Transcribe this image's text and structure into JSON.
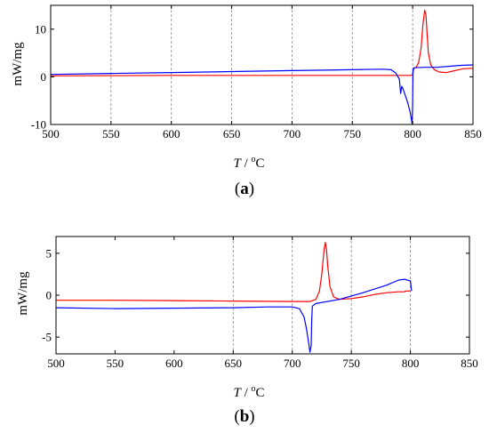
{
  "chart_data": [
    {
      "type": "line",
      "panel_label": "a",
      "xlabel_var": "T",
      "xlabel_unit_prefix": " / ",
      "xlabel_unit_sup": "o",
      "xlabel_unit_rest": "C",
      "ylabel": "mW/mg",
      "xlim": [
        500,
        850
      ],
      "ylim": [
        -10,
        15
      ],
      "xticks": [
        500,
        550,
        600,
        650,
        700,
        750,
        800,
        850
      ],
      "yticks": [
        -10,
        0,
        10
      ],
      "vgrid": [
        550,
        600,
        650,
        700,
        750,
        800
      ],
      "series": [
        {
          "color": "#ff0000",
          "points": [
            [
              500,
              0.2
            ],
            [
              600,
              0.3
            ],
            [
              700,
              0.3
            ],
            [
              750,
              0.3
            ],
            [
              790,
              0.3
            ],
            [
              799,
              0.3
            ],
            [
              800,
              0.5
            ],
            [
              801,
              1.8
            ],
            [
              803,
              2.0
            ],
            [
              805,
              3.0
            ],
            [
              807,
              6.0
            ],
            [
              808.5,
              11.0
            ],
            [
              810,
              14.0
            ],
            [
              811,
              13.0
            ],
            [
              812,
              9.0
            ],
            [
              813,
              5.0
            ],
            [
              815,
              2.5
            ],
            [
              818,
              1.5
            ],
            [
              822,
              1.0
            ],
            [
              828,
              0.9
            ],
            [
              835,
              1.3
            ],
            [
              842,
              1.7
            ],
            [
              850,
              1.8
            ]
          ]
        },
        {
          "color": "#0000ff",
          "points": [
            [
              500,
              0.5
            ],
            [
              550,
              0.7
            ],
            [
              600,
              0.9
            ],
            [
              650,
              1.1
            ],
            [
              700,
              1.3
            ],
            [
              750,
              1.5
            ],
            [
              775,
              1.6
            ],
            [
              782,
              1.5
            ],
            [
              786,
              0.8
            ],
            [
              789,
              -0.5
            ],
            [
              790,
              -3.5
            ],
            [
              791,
              -2.0
            ],
            [
              792,
              -2.5
            ],
            [
              794,
              -4.0
            ],
            [
              796,
              -5.5
            ],
            [
              798,
              -7.5
            ],
            [
              799.5,
              -9.8
            ],
            [
              800,
              -6.0
            ],
            [
              800.3,
              1.5
            ],
            [
              801,
              1.9
            ],
            [
              810,
              2.0
            ],
            [
              820,
              2.0
            ],
            [
              830,
              2.2
            ],
            [
              840,
              2.4
            ],
            [
              850,
              2.5
            ]
          ]
        }
      ]
    },
    {
      "type": "line",
      "panel_label": "b",
      "xlabel_var": "T",
      "xlabel_unit_prefix": " / ",
      "xlabel_unit_sup": "o",
      "xlabel_unit_rest": "C",
      "ylabel": "mW/mg",
      "xlim": [
        500,
        850
      ],
      "ylim": [
        -7,
        7
      ],
      "xticks": [
        500,
        550,
        600,
        650,
        700,
        750,
        800,
        850
      ],
      "yticks": [
        -5,
        0,
        5
      ],
      "vgrid": [
        650,
        700,
        750,
        800
      ],
      "series": [
        {
          "color": "#ff0000",
          "points": [
            [
              500,
              -0.6
            ],
            [
              550,
              -0.6
            ],
            [
              600,
              -0.65
            ],
            [
              650,
              -0.7
            ],
            [
              700,
              -0.75
            ],
            [
              715,
              -0.75
            ],
            [
              720,
              -0.5
            ],
            [
              723,
              0.5
            ],
            [
              725,
              2.5
            ],
            [
              727,
              5.5
            ],
            [
              728,
              6.3
            ],
            [
              729,
              5.5
            ],
            [
              730,
              3.5
            ],
            [
              732,
              1.0
            ],
            [
              735,
              -0.2
            ],
            [
              740,
              -0.5
            ],
            [
              750,
              -0.4
            ],
            [
              760,
              -0.2
            ],
            [
              770,
              0.1
            ],
            [
              780,
              0.3
            ],
            [
              790,
              0.4
            ],
            [
              795,
              0.4
            ],
            [
              796,
              0.5
            ],
            [
              800,
              0.5
            ]
          ]
        },
        {
          "color": "#0000ff",
          "points": [
            [
              500,
              -1.5
            ],
            [
              550,
              -1.6
            ],
            [
              600,
              -1.55
            ],
            [
              650,
              -1.5
            ],
            [
              680,
              -1.4
            ],
            [
              700,
              -1.4
            ],
            [
              706,
              -1.6
            ],
            [
              710,
              -2.6
            ],
            [
              712,
              -4.0
            ],
            [
              714,
              -5.8
            ],
            [
              715,
              -6.8
            ],
            [
              716,
              -6.0
            ],
            [
              716.5,
              -3.0
            ],
            [
              717,
              -1.3
            ],
            [
              720,
              -1.0
            ],
            [
              740,
              -0.5
            ],
            [
              760,
              0.3
            ],
            [
              780,
              1.2
            ],
            [
              790,
              1.8
            ],
            [
              795,
              1.9
            ],
            [
              800,
              1.7
            ],
            [
              801,
              0.5
            ]
          ]
        }
      ]
    }
  ]
}
